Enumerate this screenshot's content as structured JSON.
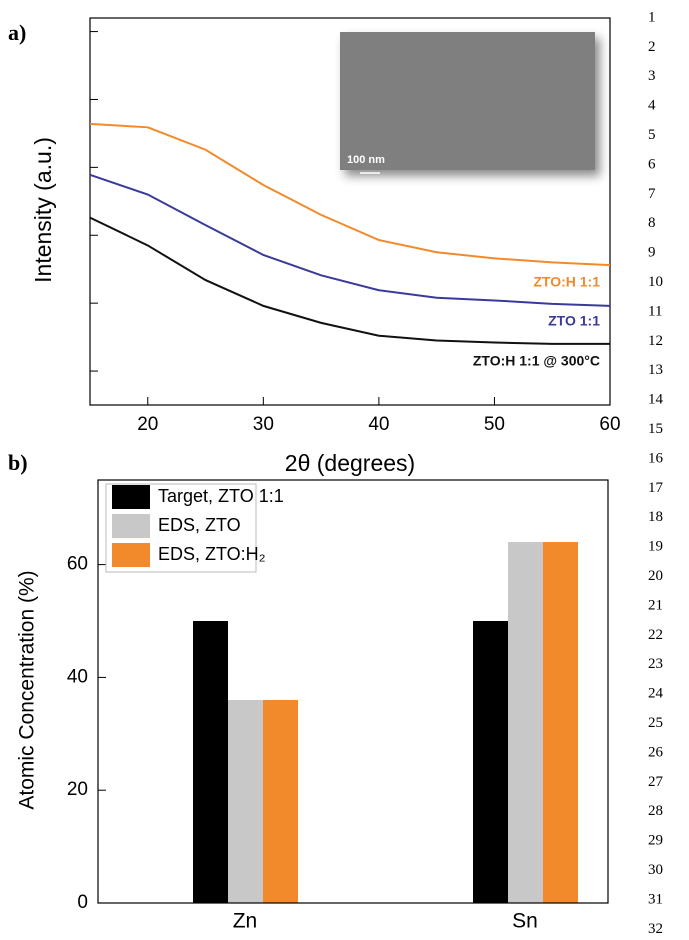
{
  "chart_data": [
    {
      "type": "line",
      "label": "a)",
      "xlabel": "2θ (degrees)",
      "ylabel": "Intensity (a.u.)",
      "inset_scale_label": "100 nm",
      "x": [
        15,
        20,
        25,
        30,
        35,
        40,
        45,
        50,
        55,
        60
      ],
      "series": [
        {
          "name": "ZTO:H 1:1",
          "color": "#f28a2c",
          "values": [
            3.64,
            3.59,
            3.26,
            2.74,
            2.3,
            1.93,
            1.75,
            1.66,
            1.6,
            1.56
          ]
        },
        {
          "name": "ZTO 1:1",
          "color": "#3a3a9a",
          "values": [
            2.89,
            2.6,
            2.15,
            1.71,
            1.41,
            1.19,
            1.08,
            1.04,
            0.99,
            0.96
          ]
        },
        {
          "name": "ZTO:H 1:1 @ 300°C",
          "color": "#111111",
          "values": [
            2.26,
            1.85,
            1.34,
            0.96,
            0.71,
            0.52,
            0.45,
            0.42,
            0.4,
            0.4
          ]
        }
      ],
      "xlim": [
        15,
        60
      ],
      "xticks": [
        20,
        30,
        40,
        50,
        60
      ],
      "ylim": [
        -0.5,
        5.2
      ],
      "yticks": [
        0,
        1,
        2,
        3,
        4,
        5
      ]
    },
    {
      "type": "bar",
      "label": "b)",
      "ylabel": "Atomic Concentration (%)",
      "categories": [
        "Zn",
        "Sn"
      ],
      "series": [
        {
          "name": "Target, ZTO 1:1",
          "color": "#000000",
          "values": [
            50,
            50
          ]
        },
        {
          "name": "EDS, ZTO",
          "color": "#c8c8c8",
          "values": [
            36,
            64
          ]
        },
        {
          "name": "EDS, ZTO:H₂",
          "color": "#f28a2c",
          "values": [
            36,
            64
          ]
        }
      ],
      "ylim": [
        0,
        75
      ],
      "yticks": [
        0,
        20,
        40,
        60
      ]
    }
  ],
  "line_numbers": [
    1,
    2,
    3,
    4,
    5,
    6,
    7,
    8,
    9,
    10,
    11,
    12,
    13,
    14,
    15,
    16,
    17,
    18,
    19,
    20,
    21,
    22,
    23,
    24,
    25,
    26,
    27,
    28,
    29,
    30,
    31,
    32
  ]
}
